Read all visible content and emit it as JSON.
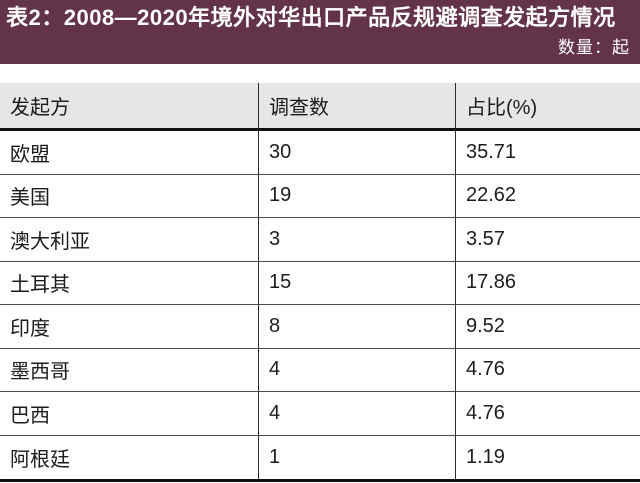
{
  "header": {
    "title": "表2：2008—2020年境外对华出口产品反规避调查发起方情况",
    "unit_label": "数量：起"
  },
  "colors": {
    "title_bar_bg": "#633349",
    "title_text": "#ffffff",
    "header_row_bg": "#e6e6e4",
    "thick_rule": "#111111",
    "row_separator": "#4d4d4d",
    "body_text": "#1c1c1c"
  },
  "table": {
    "columns": [
      "发起方",
      "调查数",
      "占比(%)"
    ],
    "rows": [
      {
        "initiator": "欧盟",
        "count": "30",
        "share": "35.71"
      },
      {
        "initiator": "美国",
        "count": "19",
        "share": "22.62"
      },
      {
        "initiator": "澳大利亚",
        "count": "3",
        "share": "3.57"
      },
      {
        "initiator": "土耳其",
        "count": "15",
        "share": "17.86"
      },
      {
        "initiator": "印度",
        "count": "8",
        "share": "9.52"
      },
      {
        "initiator": "墨西哥",
        "count": "4",
        "share": "4.76"
      },
      {
        "initiator": "巴西",
        "count": "4",
        "share": "4.76"
      },
      {
        "initiator": "阿根廷",
        "count": "1",
        "share": "1.19"
      }
    ]
  },
  "chart_data": {
    "type": "table",
    "title": "表2：2008—2020年境外对华出口产品反规避调查发起方情况",
    "unit": "数量：起",
    "columns": [
      "发起方",
      "调查数",
      "占比(%)"
    ],
    "categories": [
      "欧盟",
      "美国",
      "澳大利亚",
      "土耳其",
      "印度",
      "墨西哥",
      "巴西",
      "阿根廷"
    ],
    "series": [
      {
        "name": "调查数",
        "values": [
          30,
          19,
          3,
          15,
          8,
          4,
          4,
          1
        ]
      },
      {
        "name": "占比(%)",
        "values": [
          35.71,
          22.62,
          3.57,
          17.86,
          9.52,
          4.76,
          4.76,
          1.19
        ]
      }
    ]
  }
}
